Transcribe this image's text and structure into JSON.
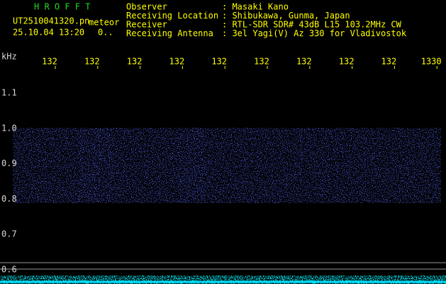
{
  "header": {
    "app": "H R O F F T",
    "file": "UT2510041320.pn",
    "mode": "meteor",
    "datetime": "25.10.04 13:20",
    "counter": "0..",
    "fields": [
      {
        "label": "Observer",
        "value": ": Masaki Kano"
      },
      {
        "label": "Receiving Location",
        "value": ": Shibukawa, Gunma, Japan"
      },
      {
        "label": "Receiver",
        "value": ": RTL-SDR SDR# 43dB L15 103.2MHz CW"
      },
      {
        "label": "Receiving Antenna",
        "value": ": 3el Yagi(V) Az 330 for Vladivostok"
      }
    ]
  },
  "axis": {
    "unit": "kHz",
    "time_labels": [
      "132",
      "132",
      "132",
      "132",
      "132",
      "132",
      "132",
      "132",
      "132",
      "1330"
    ],
    "freq_labels": [
      "1.1",
      "1.0",
      "0.9",
      "0.8",
      "0.7",
      "0.6"
    ]
  }
}
